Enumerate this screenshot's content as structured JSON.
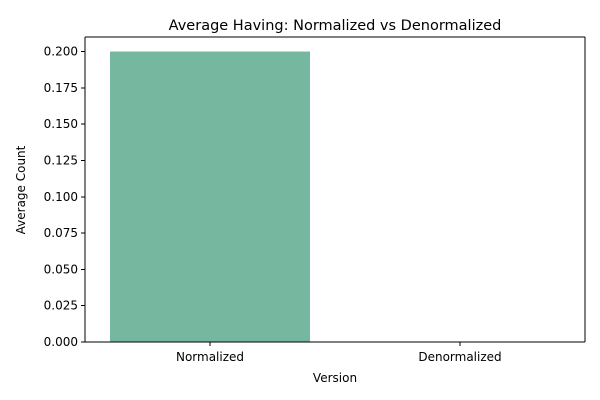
{
  "chart_data": {
    "type": "bar",
    "title": "Average Having: Normalized vs Denormalized",
    "xlabel": "Version",
    "ylabel": "Average Count",
    "categories": [
      "Normalized",
      "Denormalized"
    ],
    "values": [
      0.2,
      0.0
    ],
    "ylim": [
      0,
      0.21
    ],
    "yticks": [
      "0.000",
      "0.025",
      "0.050",
      "0.075",
      "0.100",
      "0.125",
      "0.150",
      "0.175",
      "0.200"
    ],
    "ytick_values": [
      0,
      0.025,
      0.05,
      0.075,
      0.1,
      0.125,
      0.15,
      0.175,
      0.2
    ],
    "grid": false,
    "colors": {
      "bar": "#76b7a0",
      "axis": "#000000",
      "background": "#ffffff"
    }
  }
}
